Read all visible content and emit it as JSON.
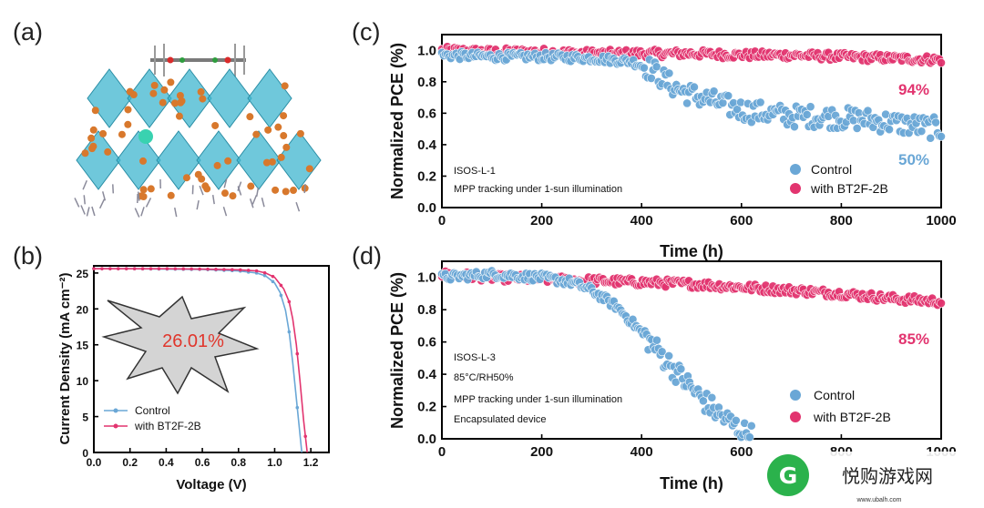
{
  "panels": {
    "a": "(a)",
    "b": "(b)",
    "c": "(c)",
    "d": "(d)"
  },
  "colors": {
    "control": "#6aa7d6",
    "bt2f": "#e2346f",
    "octahedra": "#3fb6cf",
    "atoms": "#d8782c"
  },
  "watermark": {
    "brand": "悦购游戏网",
    "url": "www.ubalh.com",
    "icon": "leaf-g-logo"
  },
  "chart_data": [
    {
      "id": "b",
      "type": "line",
      "xlabel": "Voltage (V)",
      "ylabel": "Current Density (mA cm⁻²)",
      "xlim": [
        0,
        1.3
      ],
      "ylim": [
        0,
        26
      ],
      "xticks": [
        "0.0",
        "0.2",
        "0.4",
        "0.6",
        "0.8",
        "1.0",
        "1.2"
      ],
      "yticks": [
        "0",
        "5",
        "10",
        "15",
        "20",
        "25"
      ],
      "annotation": "26.01%",
      "legend": {
        "position": "bottom-left"
      },
      "series": [
        {
          "name": "Control",
          "x": [
            0,
            0.2,
            0.4,
            0.6,
            0.8,
            0.9,
            0.95,
            1.0,
            1.03,
            1.06,
            1.08,
            1.1,
            1.12,
            1.14,
            1.15
          ],
          "y": [
            25.6,
            25.6,
            25.55,
            25.5,
            25.3,
            25.0,
            24.6,
            23.6,
            22.3,
            19.8,
            16.8,
            12.5,
            7.5,
            2.5,
            0
          ]
        },
        {
          "name": "with BT2F-2B",
          "x": [
            0,
            0.2,
            0.4,
            0.6,
            0.8,
            0.9,
            0.95,
            1.0,
            1.05,
            1.08,
            1.1,
            1.12,
            1.14,
            1.16,
            1.18
          ],
          "y": [
            25.6,
            25.6,
            25.6,
            25.55,
            25.45,
            25.3,
            25.0,
            24.4,
            22.8,
            21.0,
            18.6,
            15.0,
            10.0,
            4.5,
            0
          ]
        }
      ]
    },
    {
      "id": "c",
      "type": "scatter",
      "xlabel": "Time (h)",
      "ylabel": "Normalized PCE (%)",
      "xlim": [
        0,
        1000
      ],
      "ylim": [
        0,
        1.1
      ],
      "xticks": [
        "0",
        "200",
        "400",
        "600",
        "800",
        "1000"
      ],
      "yticks": [
        "0.0",
        "0.2",
        "0.4",
        "0.6",
        "0.8",
        "1.0"
      ],
      "notes": [
        "ISOS-L-1",
        "MPP tracking under 1-sun illumination"
      ],
      "final_labels": {
        "with BT2F-2B": "94%",
        "Control": "50%"
      },
      "legend": {
        "position": "bottom-right"
      },
      "series": [
        {
          "name": "Control",
          "x": [
            0,
            100,
            200,
            300,
            380,
            420,
            450,
            480,
            520,
            560,
            600,
            650,
            700,
            750,
            800,
            850,
            900,
            950,
            1000
          ],
          "y": [
            0.97,
            0.96,
            0.96,
            0.95,
            0.93,
            0.88,
            0.8,
            0.74,
            0.7,
            0.66,
            0.62,
            0.6,
            0.58,
            0.58,
            0.57,
            0.56,
            0.54,
            0.52,
            0.5
          ]
        },
        {
          "name": "with BT2F-2B",
          "x": [
            0,
            100,
            200,
            300,
            400,
            500,
            600,
            700,
            800,
            900,
            1000
          ],
          "y": [
            1.0,
            0.99,
            0.99,
            0.98,
            0.98,
            0.98,
            0.97,
            0.97,
            0.96,
            0.95,
            0.94
          ]
        }
      ]
    },
    {
      "id": "d",
      "type": "scatter",
      "xlabel": "Time (h)",
      "ylabel": "Normalized PCE (%)",
      "xlim": [
        0,
        1000
      ],
      "ylim": [
        0,
        1.1
      ],
      "xticks": [
        "0",
        "200",
        "400",
        "600",
        "800",
        "1000"
      ],
      "yticks": [
        "0.0",
        "0.2",
        "0.4",
        "0.6",
        "0.8",
        "1.0"
      ],
      "notes": [
        "ISOS-L-3",
        "85°C/RH50%",
        "MPP tracking under 1-sun illumination",
        "Encapsulated device"
      ],
      "final_labels": {
        "with BT2F-2B": "85%"
      },
      "legend": {
        "position": "bottom-right"
      },
      "series": [
        {
          "name": "Control",
          "x": [
            0,
            100,
            200,
            260,
            300,
            350,
            400,
            440,
            480,
            520,
            560,
            600,
            620
          ],
          "y": [
            1.0,
            1.02,
            1.0,
            0.97,
            0.92,
            0.82,
            0.66,
            0.52,
            0.38,
            0.25,
            0.14,
            0.05,
            0.02
          ]
        },
        {
          "name": "with BT2F-2B",
          "x": [
            0,
            100,
            200,
            300,
            400,
            500,
            600,
            700,
            800,
            900,
            1000
          ],
          "y": [
            1.02,
            1.0,
            0.99,
            0.98,
            0.97,
            0.96,
            0.94,
            0.92,
            0.9,
            0.87,
            0.85
          ]
        }
      ]
    }
  ]
}
